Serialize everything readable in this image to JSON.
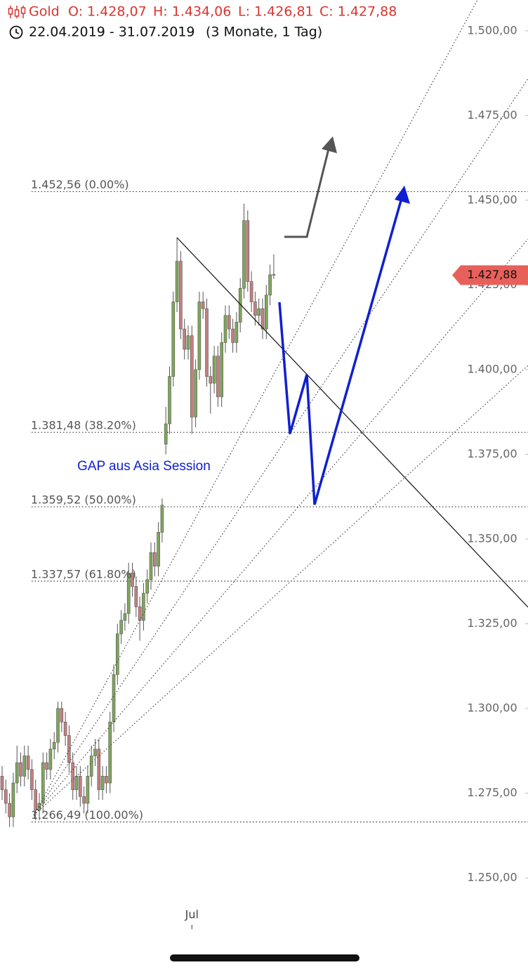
{
  "header": {
    "symbol": "Gold",
    "open": "O: 1.428,07",
    "high": "H: 1.434,06",
    "low": "L: 1.426,81",
    "close": "C: 1.427,88",
    "range": "22.04.2019 - 31.07.2019",
    "period": "(3 Monate, 1 Tag)"
  },
  "chart_data": {
    "type": "candlestick",
    "categories": [
      null,
      null,
      null,
      null,
      null,
      null,
      null,
      null,
      null,
      null,
      null,
      null,
      null,
      null,
      null,
      null,
      null,
      null,
      null,
      null,
      null,
      null,
      null,
      null,
      null,
      null,
      null,
      null,
      null,
      null,
      null,
      null,
      null,
      null,
      null,
      null,
      null,
      null,
      null,
      null,
      null,
      null,
      null,
      null,
      null,
      null,
      null,
      null,
      null,
      null,
      null,
      "Jul",
      null,
      null,
      null,
      null,
      null,
      null,
      null,
      null,
      null,
      null,
      null,
      null,
      null,
      null,
      null,
      null,
      null,
      null,
      null,
      null,
      null,
      null
    ],
    "open": [
      1280,
      1276,
      1272,
      1268,
      1278,
      1284,
      1280,
      1286,
      1282,
      1276,
      1270,
      1272,
      1284,
      1282,
      1288,
      1290,
      1300,
      1296,
      1292,
      1284,
      1276,
      1280,
      1274,
      1272,
      1280,
      1286,
      1288,
      1276,
      1280,
      1278,
      1296,
      1310,
      1322,
      1326,
      1328,
      1340,
      1336,
      1330,
      1326,
      1334,
      1338,
      1346,
      1342,
      1352,
      1378,
      1384,
      1398,
      1420,
      1432,
      1412,
      1406,
      1410,
      1386,
      1400,
      1420,
      1418,
      1398,
      1396,
      1404,
      1392,
      1408,
      1416,
      1412,
      1408,
      1414,
      1424,
      1444,
      1426,
      1420,
      1416,
      1418,
      1412,
      1422,
      1428.07
    ],
    "high": [
      1283,
      1279,
      1275,
      1281,
      1289,
      1287,
      1289,
      1289,
      1285,
      1279,
      1275,
      1287,
      1287,
      1291,
      1293,
      1302,
      1302,
      1299,
      1295,
      1287,
      1283,
      1283,
      1277,
      1283,
      1289,
      1291,
      1291,
      1283,
      1283,
      1299,
      1313,
      1325,
      1329,
      1331,
      1343,
      1343,
      1339,
      1333,
      1337,
      1341,
      1349,
      1349,
      1355,
      1362,
      1389,
      1401,
      1423,
      1439,
      1435,
      1415,
      1413,
      1413,
      1403,
      1423,
      1423,
      1421,
      1401,
      1407,
      1407,
      1411,
      1419,
      1419,
      1415,
      1417,
      1427,
      1449,
      1447,
      1429,
      1423,
      1421,
      1421,
      1425,
      1431,
      1434.06
    ],
    "low": [
      1273,
      1269,
      1265,
      1265,
      1275,
      1277,
      1277,
      1279,
      1273,
      1267,
      1267,
      1269,
      1279,
      1279,
      1285,
      1287,
      1293,
      1289,
      1281,
      1273,
      1273,
      1271,
      1269,
      1269,
      1277,
      1283,
      1273,
      1273,
      1275,
      1275,
      1293,
      1307,
      1319,
      1323,
      1325,
      1333,
      1327,
      1320,
      1323,
      1331,
      1335,
      1339,
      1339,
      1349,
      1375,
      1381,
      1395,
      1417,
      1409,
      1403,
      1403,
      1381,
      1383,
      1397,
      1415,
      1395,
      1387,
      1393,
      1389,
      1389,
      1405,
      1409,
      1405,
      1405,
      1411,
      1421,
      1423,
      1417,
      1413,
      1413,
      1409,
      1409,
      1419,
      1426.81
    ],
    "close": [
      1276,
      1272,
      1268,
      1278,
      1284,
      1280,
      1286,
      1282,
      1276,
      1270,
      1272,
      1284,
      1282,
      1288,
      1290,
      1300,
      1296,
      1292,
      1284,
      1276,
      1280,
      1274,
      1272,
      1280,
      1286,
      1288,
      1276,
      1280,
      1278,
      1296,
      1310,
      1322,
      1326,
      1328,
      1340,
      1336,
      1330,
      1326,
      1334,
      1338,
      1346,
      1342,
      1352,
      1360,
      1384,
      1398,
      1420,
      1432,
      1412,
      1406,
      1410,
      1386,
      1400,
      1420,
      1418,
      1398,
      1396,
      1404,
      1392,
      1408,
      1416,
      1412,
      1408,
      1414,
      1424,
      1444,
      1426,
      1420,
      1416,
      1418,
      1412,
      1422,
      1428,
      1427.88
    ],
    "up_color": "#7fa65a",
    "down_color": "#c47f7f",
    "ylim": [
      1241.5,
      1509.1
    ],
    "yticks": [
      {
        "value": 1250,
        "label": "1.250,00"
      },
      {
        "value": 1275,
        "label": "1.275,00"
      },
      {
        "value": 1300,
        "label": "1.300,00"
      },
      {
        "value": 1325,
        "label": "1.325,00"
      },
      {
        "value": 1350,
        "label": "1.350,00"
      },
      {
        "value": 1375,
        "label": "1.375,00"
      },
      {
        "value": 1400,
        "label": "1.400,00"
      },
      {
        "value": 1425,
        "label": "1.425,00"
      },
      {
        "value": 1450,
        "label": "1.450,00"
      },
      {
        "value": 1475,
        "label": "1.475,00"
      },
      {
        "value": 1500,
        "label": "1.500,00"
      }
    ],
    "fib_levels": [
      {
        "value": 1452.56,
        "label": "1.452,56 (0.00%)"
      },
      {
        "value": 1381.48,
        "label": "1.381,48 (38.20%)"
      },
      {
        "value": 1359.52,
        "label": "1.359,52 (50.00%)"
      },
      {
        "value": 1337.57,
        "label": "1.337,57 (61.80%)"
      },
      {
        "value": 1266.49,
        "label": "1.266,49 (100.00%)"
      }
    ],
    "last_price": {
      "value": 1427.88,
      "label": "1.427,88"
    },
    "annotation": "GAP aus Asia Session"
  }
}
